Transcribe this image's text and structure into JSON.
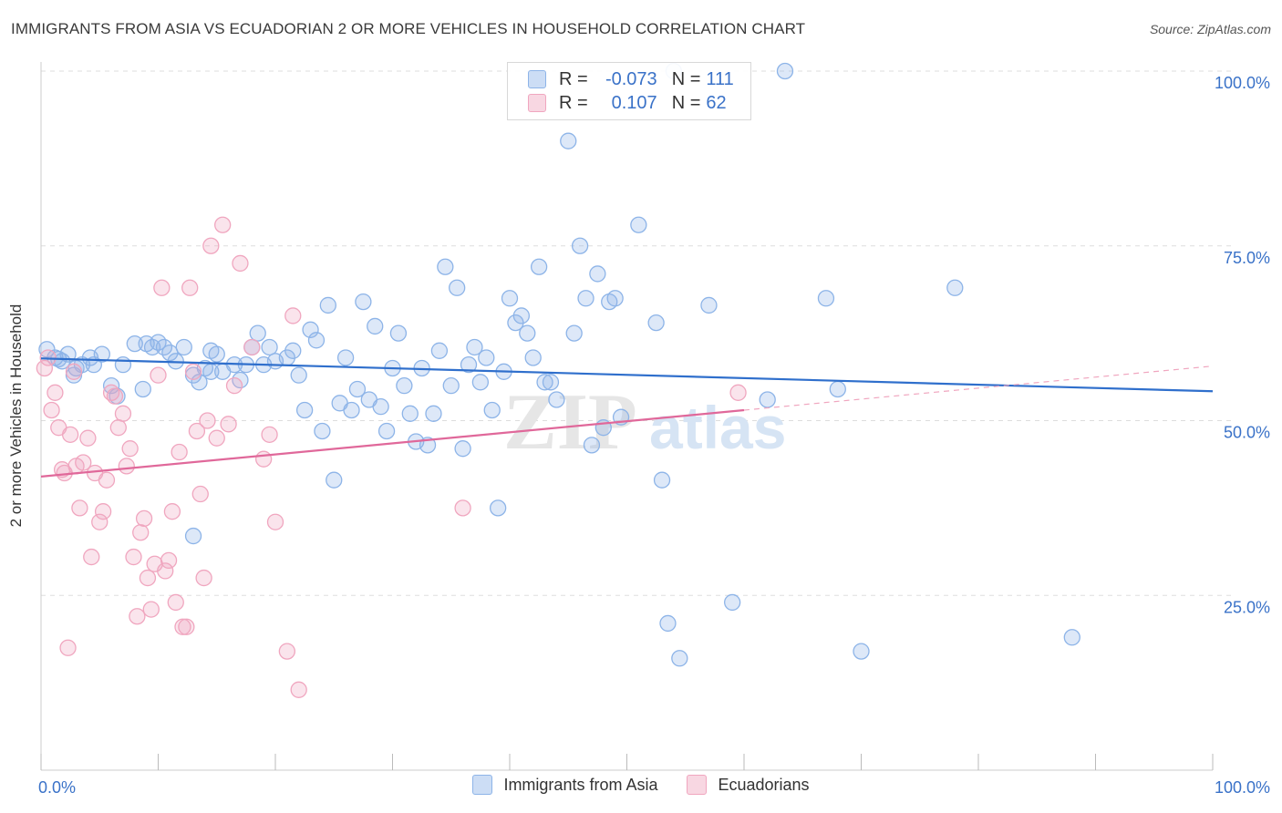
{
  "title": "IMMIGRANTS FROM ASIA VS ECUADORIAN 2 OR MORE VEHICLES IN HOUSEHOLD CORRELATION CHART",
  "source": "Source: ZipAtlas.com",
  "watermark": {
    "zip": "ZIP",
    "atlas": "atlas"
  },
  "legend": {
    "rows": [
      {
        "r_label": "R =",
        "r_value": "-0.073",
        "n_label": "N =",
        "n_value": "111"
      },
      {
        "r_label": "R =",
        "r_value": "0.107",
        "n_label": "N =",
        "n_value": "62"
      }
    ]
  },
  "colors": {
    "blue": "#8db4e8",
    "blue_fill": "rgba(141,180,232,0.30)",
    "blue_line": "#2f6fcc",
    "pink": "#f0a6bf",
    "pink_fill": "rgba(240,166,191,0.30)",
    "pink_line": "#e0689a",
    "tick_label": "#3a72c8",
    "grid": "#dddddd"
  },
  "chart_data": {
    "type": "scatter",
    "title": "IMMIGRANTS FROM ASIA VS ECUADORIAN 2 OR MORE VEHICLES IN HOUSEHOLD CORRELATION CHART",
    "xlabel": "",
    "ylabel": "2 or more Vehicles in Household",
    "xlim": [
      0,
      100
    ],
    "ylim": [
      0,
      100
    ],
    "x_tick_labels": [
      "0.0%",
      "100.0%"
    ],
    "y_ticks": [
      25,
      50,
      75,
      100
    ],
    "y_tick_labels": [
      "25.0%",
      "50.0%",
      "75.0%",
      "100.0%"
    ],
    "grid": true,
    "series": [
      {
        "name": "Immigrants from Asia",
        "color": "#8db4e8",
        "trend": {
          "x": [
            0,
            100
          ],
          "y": [
            58.9,
            54.2
          ]
        },
        "points": [
          [
            0.5,
            60.2
          ],
          [
            1.2,
            59.0
          ],
          [
            1.8,
            58.5
          ],
          [
            2.3,
            59.5
          ],
          [
            2.8,
            56.5
          ],
          [
            3.5,
            58.0
          ],
          [
            4.2,
            59.0
          ],
          [
            4.5,
            58.0
          ],
          [
            5.2,
            59.5
          ],
          [
            6.0,
            55.0
          ],
          [
            6.5,
            53.5
          ],
          [
            7.0,
            58.0
          ],
          [
            8.0,
            61.0
          ],
          [
            8.7,
            54.5
          ],
          [
            9.5,
            60.5
          ],
          [
            10.0,
            61.2
          ],
          [
            10.5,
            60.5
          ],
          [
            11.0,
            59.7
          ],
          [
            11.5,
            58.5
          ],
          [
            12.2,
            60.5
          ],
          [
            13.0,
            56.5
          ],
          [
            13.5,
            55.5
          ],
          [
            14.0,
            57.5
          ],
          [
            14.5,
            57.0
          ],
          [
            15.0,
            59.5
          ],
          [
            15.5,
            57.0
          ],
          [
            16.5,
            58.0
          ],
          [
            17.0,
            55.8
          ],
          [
            17.5,
            58.0
          ],
          [
            18.0,
            60.5
          ],
          [
            18.5,
            62.5
          ],
          [
            19.0,
            58.0
          ],
          [
            19.5,
            60.5
          ],
          [
            20.0,
            58.5
          ],
          [
            21.0,
            59.0
          ],
          [
            21.5,
            60.0
          ],
          [
            22.0,
            56.5
          ],
          [
            22.5,
            51.5
          ],
          [
            23.0,
            63.0
          ],
          [
            23.5,
            61.5
          ],
          [
            24.0,
            48.5
          ],
          [
            24.5,
            66.5
          ],
          [
            25.0,
            41.5
          ],
          [
            25.5,
            52.5
          ],
          [
            26.0,
            59.0
          ],
          [
            26.5,
            51.5
          ],
          [
            27.0,
            54.5
          ],
          [
            27.5,
            67.0
          ],
          [
            28.0,
            53.0
          ],
          [
            28.5,
            63.5
          ],
          [
            29.0,
            52.0
          ],
          [
            29.5,
            48.5
          ],
          [
            30.0,
            57.5
          ],
          [
            30.5,
            62.5
          ],
          [
            31.0,
            55.0
          ],
          [
            31.5,
            51.0
          ],
          [
            32.0,
            47.0
          ],
          [
            32.5,
            57.5
          ],
          [
            33.0,
            46.5
          ],
          [
            33.5,
            51.0
          ],
          [
            34.0,
            60.0
          ],
          [
            34.5,
            72.0
          ],
          [
            35.0,
            55.0
          ],
          [
            35.5,
            69.0
          ],
          [
            36.0,
            46.0
          ],
          [
            36.5,
            58.0
          ],
          [
            37.0,
            60.5
          ],
          [
            37.5,
            55.5
          ],
          [
            38.0,
            59.0
          ],
          [
            38.5,
            51.5
          ],
          [
            39.0,
            37.5
          ],
          [
            39.5,
            57.0
          ],
          [
            40.0,
            67.5
          ],
          [
            40.5,
            64.0
          ],
          [
            41.0,
            65.0
          ],
          [
            41.5,
            62.5
          ],
          [
            42.0,
            59.0
          ],
          [
            42.5,
            72.0
          ],
          [
            43.0,
            55.5
          ],
          [
            43.5,
            55.5
          ],
          [
            44.0,
            53.0
          ],
          [
            45.0,
            90.0
          ],
          [
            45.5,
            62.5
          ],
          [
            46.0,
            75.0
          ],
          [
            46.5,
            67.5
          ],
          [
            47.0,
            46.5
          ],
          [
            47.5,
            71.0
          ],
          [
            48.0,
            49.0
          ],
          [
            48.5,
            67.0
          ],
          [
            49.0,
            67.5
          ],
          [
            49.5,
            50.5
          ],
          [
            51.0,
            78.0
          ],
          [
            52.5,
            64.0
          ],
          [
            53.0,
            41.5
          ],
          [
            53.5,
            21.0
          ],
          [
            54.0,
            100.0
          ],
          [
            54.5,
            16.0
          ],
          [
            57.0,
            66.5
          ],
          [
            59.0,
            24.0
          ],
          [
            62.0,
            53.0
          ],
          [
            63.5,
            100.0
          ],
          [
            67.0,
            67.5
          ],
          [
            68.0,
            54.5
          ],
          [
            70.0,
            17.0
          ],
          [
            88.0,
            19.0
          ],
          [
            78.0,
            69.0
          ],
          [
            13.0,
            33.5
          ],
          [
            3.0,
            57.5
          ],
          [
            9.0,
            61.0
          ],
          [
            1.5,
            58.8
          ],
          [
            14.5,
            60.0
          ]
        ]
      },
      {
        "name": "Ecuadorians",
        "color": "#f0a6bf",
        "trend": {
          "x": [
            0,
            60
          ],
          "y": [
            42.0,
            51.5
          ]
        },
        "trend_dashed": {
          "x": [
            60,
            100
          ],
          "y": [
            51.5,
            57.8
          ]
        },
        "points": [
          [
            0.3,
            57.5
          ],
          [
            0.6,
            59.0
          ],
          [
            0.9,
            51.5
          ],
          [
            1.2,
            54.0
          ],
          [
            1.5,
            49.0
          ],
          [
            1.8,
            43.0
          ],
          [
            2.0,
            42.5
          ],
          [
            2.3,
            17.5
          ],
          [
            2.5,
            48.0
          ],
          [
            3.0,
            43.5
          ],
          [
            3.3,
            37.5
          ],
          [
            3.6,
            44.0
          ],
          [
            4.0,
            47.5
          ],
          [
            4.3,
            30.5
          ],
          [
            4.6,
            42.5
          ],
          [
            5.0,
            35.5
          ],
          [
            5.3,
            37.0
          ],
          [
            5.6,
            41.5
          ],
          [
            6.0,
            54.0
          ],
          [
            6.3,
            53.5
          ],
          [
            6.6,
            49.0
          ],
          [
            7.0,
            51.0
          ],
          [
            7.3,
            43.5
          ],
          [
            7.6,
            46.0
          ],
          [
            7.9,
            30.5
          ],
          [
            8.2,
            22.0
          ],
          [
            8.5,
            34.0
          ],
          [
            8.8,
            36.0
          ],
          [
            9.1,
            27.5
          ],
          [
            9.4,
            23.0
          ],
          [
            9.7,
            29.5
          ],
          [
            10.0,
            56.5
          ],
          [
            10.3,
            69.0
          ],
          [
            10.6,
            28.5
          ],
          [
            10.9,
            30.0
          ],
          [
            11.2,
            37.0
          ],
          [
            11.5,
            24.0
          ],
          [
            11.8,
            45.5
          ],
          [
            12.1,
            20.5
          ],
          [
            12.4,
            20.5
          ],
          [
            12.7,
            69.0
          ],
          [
            13.0,
            57.0
          ],
          [
            13.3,
            48.5
          ],
          [
            13.6,
            39.5
          ],
          [
            13.9,
            27.5
          ],
          [
            14.2,
            50.0
          ],
          [
            14.5,
            75.0
          ],
          [
            15.0,
            47.5
          ],
          [
            15.5,
            78.0
          ],
          [
            16.0,
            49.5
          ],
          [
            16.5,
            55.0
          ],
          [
            17.0,
            72.5
          ],
          [
            18.0,
            60.5
          ],
          [
            19.0,
            44.5
          ],
          [
            19.5,
            48.0
          ],
          [
            20.0,
            35.5
          ],
          [
            21.0,
            17.0
          ],
          [
            21.5,
            65.0
          ],
          [
            22.0,
            11.5
          ],
          [
            36.0,
            37.5
          ],
          [
            59.5,
            54.0
          ],
          [
            2.8,
            57.0
          ]
        ]
      }
    ]
  },
  "bottom_legend": [
    "Immigrants from Asia",
    "Ecuadorians"
  ]
}
